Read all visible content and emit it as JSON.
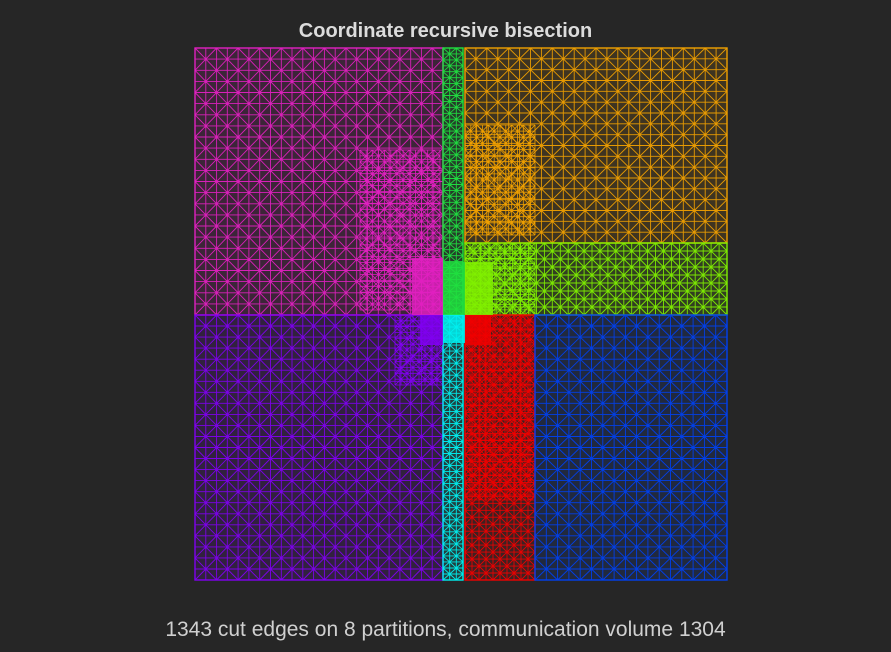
{
  "figure": {
    "title": "Coordinate recursive bisection",
    "caption": "1343 cut edges on 8 partitions, communication volume 1304"
  },
  "partitions": [
    {
      "id": 1,
      "color": "#e020c0"
    },
    {
      "id": 2,
      "color": "#f0a000"
    },
    {
      "id": 3,
      "color": "#20e040"
    },
    {
      "id": 4,
      "color": "#80f000"
    },
    {
      "id": 5,
      "color": "#8000f0"
    },
    {
      "id": 6,
      "color": "#00f0f0"
    },
    {
      "id": 7,
      "color": "#f00000"
    },
    {
      "id": 8,
      "color": "#0040f0"
    }
  ]
}
